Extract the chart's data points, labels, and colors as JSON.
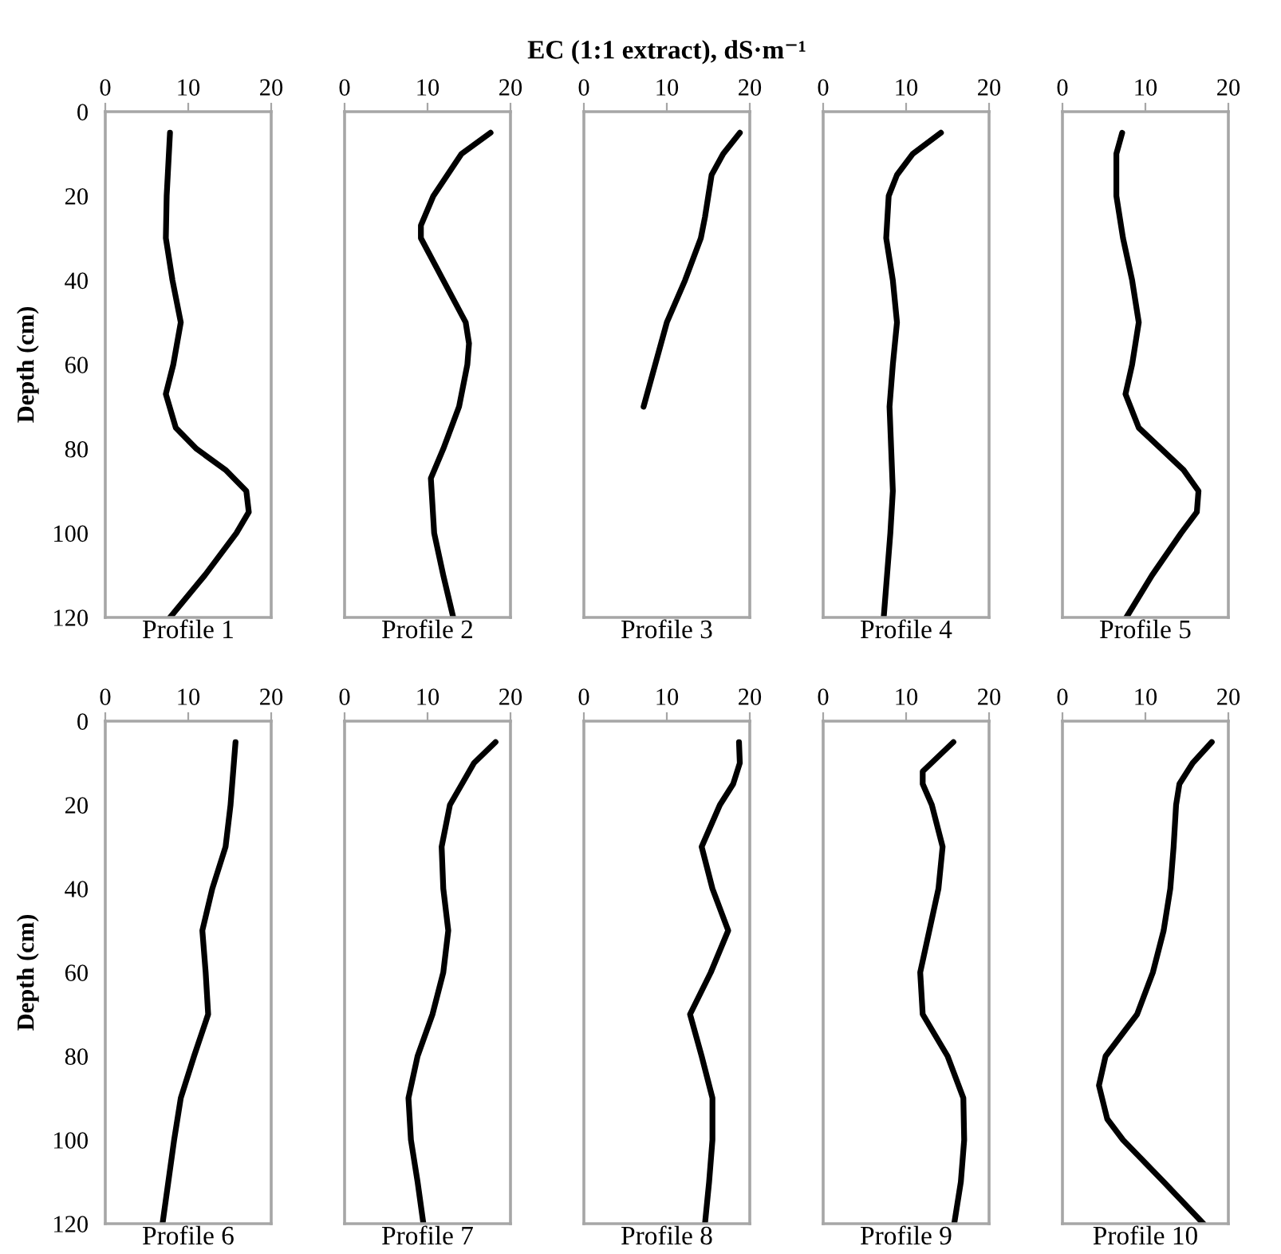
{
  "chart_data": [
    {
      "type": "line",
      "xlabel": "Profile 1",
      "ylabel": "Depth (cm)",
      "xlim": [
        0,
        20
      ],
      "xticks": [
        0,
        10,
        20
      ],
      "ylim": [
        120,
        0
      ],
      "yticks": [
        0,
        20,
        40,
        60,
        80,
        100,
        120
      ],
      "series": [
        {
          "color": "#000000",
          "x": [
            7.8,
            7.4,
            7.3,
            8.1,
            9.1,
            8.2,
            7.3,
            8.5,
            11,
            14.5,
            17,
            17.3,
            15.8,
            12,
            7.8
          ],
          "values": [
            5,
            20,
            30,
            40,
            50,
            60,
            67,
            75,
            80,
            85,
            90,
            95,
            100,
            110,
            120
          ]
        }
      ]
    },
    {
      "type": "line",
      "xlabel": "Profile 2",
      "xlim": [
        0,
        20
      ],
      "xticks": [
        0,
        10,
        20
      ],
      "ylim": [
        120,
        0
      ],
      "yticks": [
        0,
        20,
        40,
        60,
        80,
        100,
        120
      ],
      "tick_labels": "x",
      "series": [
        {
          "color": "#000000",
          "x": [
            17.6,
            14.1,
            10.7,
            9.2,
            9.2,
            11.9,
            14.6,
            15.0,
            14.8,
            13.8,
            11.9,
            10.4,
            10.8,
            11.9,
            13.1
          ],
          "values": [
            5,
            10,
            20,
            27,
            30,
            40,
            50,
            55,
            60,
            70,
            80,
            87,
            100,
            110,
            120
          ]
        }
      ]
    },
    {
      "type": "line",
      "title": "EC (1:1 extract), dS·m⁻¹",
      "xlabel": "Profile 3",
      "xlim": [
        0,
        20
      ],
      "xticks": [
        0,
        10,
        20
      ],
      "ylim": [
        120,
        0
      ],
      "yticks": [
        0,
        20,
        40,
        60,
        80,
        100,
        120
      ],
      "tick_labels": "x",
      "series": [
        {
          "color": "#000000",
          "x": [
            18.8,
            16.8,
            15.4,
            15,
            14.6,
            14.1,
            12.2,
            10,
            8.6,
            7.2
          ],
          "values": [
            5,
            10,
            15,
            20,
            25,
            30,
            40,
            50,
            60,
            70
          ]
        }
      ]
    },
    {
      "type": "line",
      "xlabel": "Profile 4",
      "xlim": [
        0,
        20
      ],
      "xticks": [
        0,
        10,
        20
      ],
      "ylim": [
        120,
        0
      ],
      "yticks": [
        0,
        20,
        40,
        60,
        80,
        100,
        120
      ],
      "tick_labels": "x",
      "series": [
        {
          "color": "#000000",
          "x": [
            14.2,
            10.8,
            8.9,
            7.9,
            7.6,
            8.4,
            8.9,
            8.4,
            8,
            8.2,
            8.4,
            8.1,
            7.7,
            7.3
          ],
          "values": [
            5,
            10,
            15,
            20,
            30,
            40,
            50,
            60,
            70,
            80,
            90,
            100,
            110,
            120
          ]
        }
      ]
    },
    {
      "type": "line",
      "xlabel": "Profile 5",
      "xlim": [
        0,
        20
      ],
      "xticks": [
        0,
        10,
        20
      ],
      "ylim": [
        120,
        0
      ],
      "yticks": [
        0,
        20,
        40,
        60,
        80,
        100,
        120
      ],
      "tick_labels": "x",
      "series": [
        {
          "color": "#000000",
          "x": [
            7.2,
            6.5,
            6.5,
            7.3,
            8.4,
            9.2,
            8.4,
            7.6,
            9.2,
            11.9,
            14.6,
            16.4,
            16.2,
            14.3,
            10.8,
            7.7
          ],
          "values": [
            5,
            10,
            20,
            30,
            40,
            50,
            60,
            67,
            75,
            80,
            85,
            90,
            95,
            100,
            110,
            120
          ]
        }
      ]
    },
    {
      "type": "line",
      "xlabel": "Profile 6",
      "ylabel": "Depth (cm)",
      "xlim": [
        0,
        20
      ],
      "xticks": [
        0,
        10,
        20
      ],
      "ylim": [
        120,
        0
      ],
      "yticks": [
        0,
        20,
        40,
        60,
        80,
        100,
        120
      ],
      "series": [
        {
          "color": "#000000",
          "x": [
            15.7,
            15.5,
            15.1,
            14.5,
            12.9,
            11.7,
            12.1,
            12.4,
            10.7,
            9.1,
            8.3,
            7.6,
            6.9
          ],
          "values": [
            5,
            10,
            20,
            30,
            40,
            50,
            60,
            70,
            80,
            90,
            100,
            110,
            120
          ]
        }
      ]
    },
    {
      "type": "line",
      "xlabel": "Profile 7",
      "xlim": [
        0,
        20
      ],
      "xticks": [
        0,
        10,
        20
      ],
      "ylim": [
        120,
        0
      ],
      "yticks": [
        0,
        20,
        40,
        60,
        80,
        100,
        120
      ],
      "tick_labels": "x",
      "series": [
        {
          "color": "#000000",
          "x": [
            18.2,
            15.6,
            12.7,
            11.7,
            11.9,
            12.5,
            11.9,
            10.6,
            8.8,
            7.7,
            8,
            8.8,
            9.5
          ],
          "values": [
            5,
            10,
            20,
            30,
            40,
            50,
            60,
            70,
            80,
            90,
            100,
            110,
            120
          ]
        }
      ]
    },
    {
      "type": "line",
      "xlabel": "Profile 8",
      "xlim": [
        0,
        20
      ],
      "xticks": [
        0,
        10,
        20
      ],
      "ylim": [
        120,
        0
      ],
      "yticks": [
        0,
        20,
        40,
        60,
        80,
        100,
        120
      ],
      "tick_labels": "x",
      "series": [
        {
          "color": "#000000",
          "x": [
            18.7,
            18.8,
            18,
            16.4,
            14.2,
            15.5,
            17.4,
            15.3,
            12.8,
            14.2,
            15.5,
            15.5,
            15.1,
            14.6
          ],
          "values": [
            5,
            10,
            15,
            20,
            30,
            40,
            50,
            60,
            70,
            80,
            90,
            100,
            110,
            120
          ]
        }
      ]
    },
    {
      "type": "line",
      "xlabel": "Profile 9",
      "xlim": [
        0,
        20
      ],
      "xticks": [
        0,
        10,
        20
      ],
      "ylim": [
        120,
        0
      ],
      "yticks": [
        0,
        20,
        40,
        60,
        80,
        100,
        120
      ],
      "tick_labels": "x",
      "series": [
        {
          "color": "#000000",
          "x": [
            15.7,
            12,
            12,
            13.1,
            14.4,
            13.9,
            12.8,
            11.7,
            12,
            15,
            16.9,
            17,
            16.6,
            15.8
          ],
          "values": [
            5,
            12,
            15,
            20,
            30,
            40,
            50,
            60,
            70,
            80,
            90,
            100,
            110,
            120
          ]
        }
      ]
    },
    {
      "type": "line",
      "xlabel": "Profile 10",
      "xlim": [
        0,
        20
      ],
      "xticks": [
        0,
        10,
        20
      ],
      "ylim": [
        120,
        0
      ],
      "yticks": [
        0,
        20,
        40,
        60,
        80,
        100,
        120
      ],
      "tick_labels": "x",
      "series": [
        {
          "color": "#000000",
          "x": [
            18,
            15.7,
            14.1,
            13.7,
            13.4,
            13,
            12.2,
            10.9,
            9,
            7.1,
            5.2,
            4.4,
            5.4,
            7.3,
            12.2,
            17
          ],
          "values": [
            5,
            10,
            15,
            20,
            30,
            40,
            50,
            60,
            70,
            75,
            80,
            87,
            95,
            100,
            110,
            120
          ]
        }
      ]
    }
  ]
}
